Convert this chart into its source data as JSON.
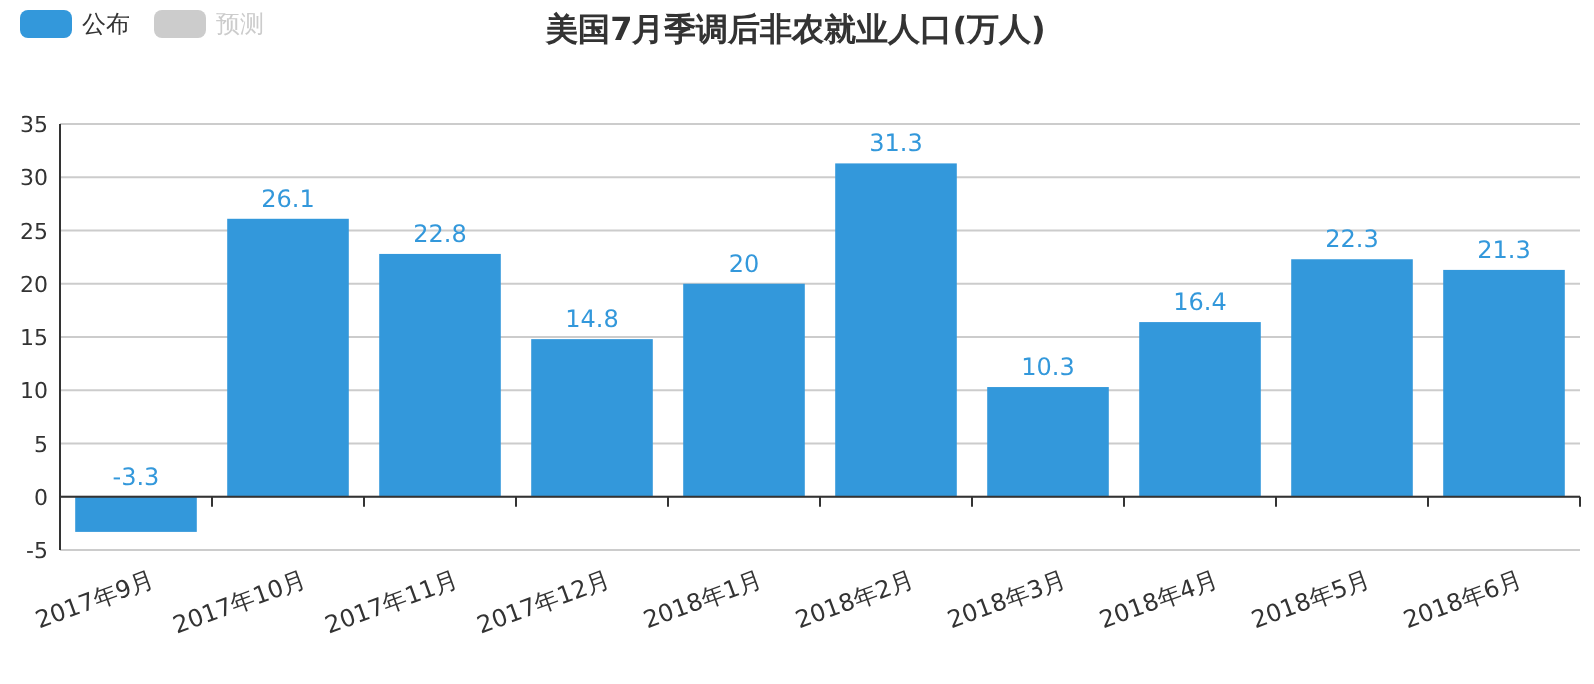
{
  "chart_data": {
    "type": "bar",
    "title": "美国7月季调后非农就业人口(万人)",
    "categories": [
      "2017年9月",
      "2017年10月",
      "2017年11月",
      "2017年12月",
      "2018年1月",
      "2018年2月",
      "2018年3月",
      "2018年4月",
      "2018年5月",
      "2018年6月"
    ],
    "series": [
      {
        "name": "公布",
        "color": "#3398db",
        "values": [
          -3.3,
          26.1,
          22.8,
          14.8,
          20,
          31.3,
          10.3,
          16.4,
          22.3,
          21.3
        ]
      },
      {
        "name": "预测",
        "color": "#cccccc",
        "values": [
          null,
          null,
          null,
          null,
          null,
          null,
          null,
          null,
          null,
          null
        ]
      }
    ],
    "ylim": [
      -5,
      35
    ],
    "yticks": [
      -5,
      0,
      5,
      10,
      15,
      20,
      25,
      30,
      35
    ],
    "grid": "y",
    "legend": "top left",
    "data_labels": true
  }
}
